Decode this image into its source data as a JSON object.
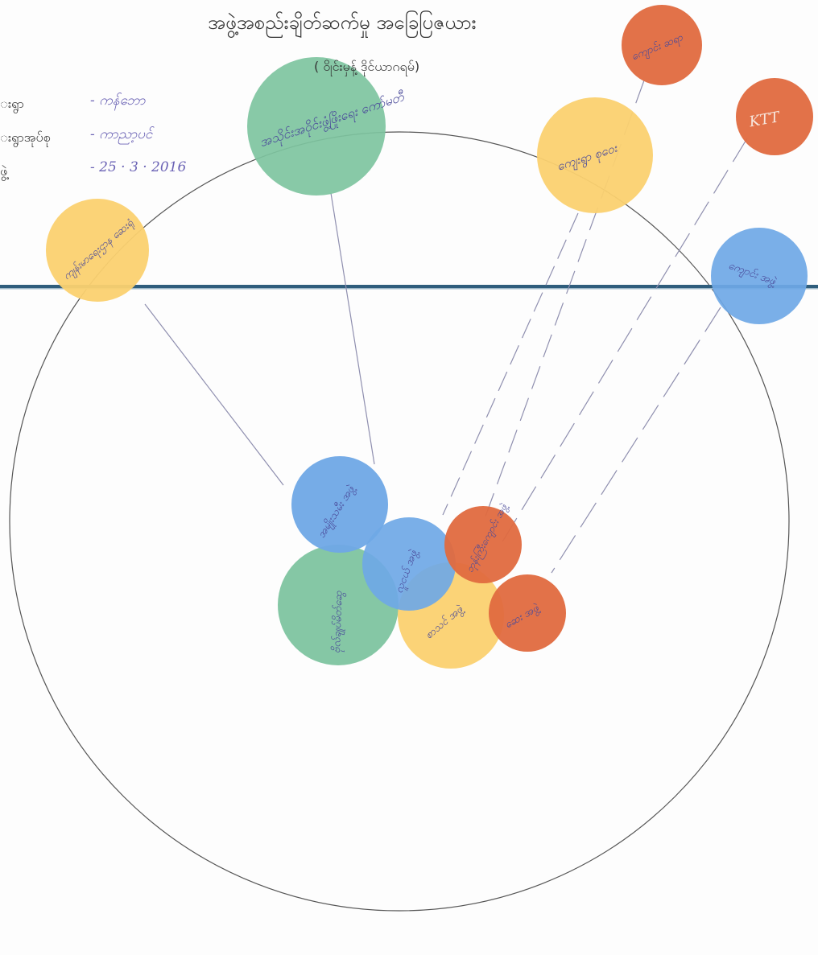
{
  "header": {
    "title": "အဖွဲ့အစည်းချိတ်ဆက်မှု အခြေပြဇယား",
    "subtitle": "( ၀ိုင်းမှန့် ဒိုင်ယာဂရမ်)"
  },
  "info": [
    {
      "label": "းရွာ",
      "value": "- ကန်ဘော"
    },
    {
      "label": "းရွာအုပ်စု",
      "value": "- ကာညာ့ပင်"
    },
    {
      "label": "ဖွဲ့",
      "value": "- 25 · 3 · 2016"
    }
  ],
  "colors": {
    "green": "#7ec4a0",
    "yellow": "#fbd170",
    "blue": "#6fa8e6",
    "red": "#e06a3f",
    "line": "#2f5d7c",
    "circle": "#555555",
    "connector": "#8f8faf"
  },
  "outer_bubbles": [
    {
      "name": "outer-bubble-green-top",
      "color": "green",
      "text": "အသိုင်းအဝိုင်းဖွံ့ဖြိုးရေး ကော်မတီ"
    },
    {
      "name": "outer-bubble-yellow-left",
      "color": "yellow",
      "text": "ကျန်းမာရေးဌာန ဆေးရုံ"
    },
    {
      "name": "outer-bubble-yellow-right",
      "color": "yellow",
      "text": "ကျေးရွာ စုဝေး"
    },
    {
      "name": "outer-bubble-red-top",
      "color": "red",
      "text": "ကျောင်း ဆရာ"
    },
    {
      "name": "outer-bubble-red-ktt",
      "color": "red",
      "text": "KTT"
    },
    {
      "name": "outer-bubble-blue-right",
      "color": "blue",
      "text": "ကျောင်း အဖွဲ့"
    }
  ],
  "inner_bubbles": [
    {
      "name": "inner-bubble-blue-top",
      "color": "blue",
      "text": "အမျိုးသမီး အဖွဲ့"
    },
    {
      "name": "inner-bubble-green",
      "color": "green",
      "text": "ဗိုလ်ချုပ်မိတ်ဆွေ"
    },
    {
      "name": "inner-bubble-blue-mid",
      "color": "blue",
      "text": "လူငယ် အဖွဲ့"
    },
    {
      "name": "inner-bubble-red-top",
      "color": "red",
      "text": "ဘုန်းကြီးကျောင်း အဖွဲ့"
    },
    {
      "name": "inner-bubble-yellow",
      "color": "yellow",
      "text": "စာသင် အဖွဲ့"
    },
    {
      "name": "inner-bubble-red-bottom",
      "color": "red",
      "text": "ဆေး အဖွဲ့"
    }
  ]
}
